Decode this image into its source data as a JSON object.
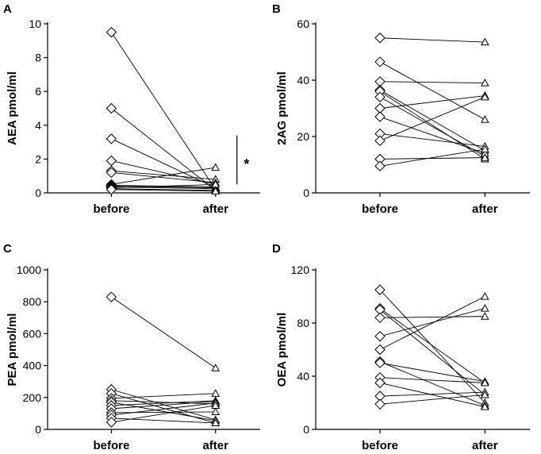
{
  "chart_data": [
    {
      "type": "scatter",
      "panel": "A",
      "ylabel": "AEA pmol/ml",
      "categories": [
        "before",
        "after"
      ],
      "ylim": [
        0,
        10
      ],
      "yticks": [
        "0",
        "2",
        "4",
        "6",
        "8",
        "10"
      ],
      "significance": "*",
      "pairs": [
        [
          9.5,
          0.2
        ],
        [
          5.0,
          0.15
        ],
        [
          3.2,
          0.3
        ],
        [
          1.9,
          0.5
        ],
        [
          1.3,
          0.8
        ],
        [
          1.2,
          0.6
        ],
        [
          0.5,
          1.5
        ],
        [
          0.45,
          0.35
        ],
        [
          0.4,
          0.3
        ],
        [
          0.35,
          0.25
        ],
        [
          0.3,
          0.5
        ],
        [
          0.25,
          0.15
        ],
        [
          0.2,
          0.1
        ]
      ]
    },
    {
      "type": "scatter",
      "panel": "B",
      "ylabel": "2AG pmol/ml",
      "categories": [
        "before",
        "after"
      ],
      "ylim": [
        0,
        60
      ],
      "yticks": [
        "0",
        "20",
        "40",
        "60"
      ],
      "pairs": [
        [
          55,
          53.5
        ],
        [
          46.5,
          26
        ],
        [
          39.5,
          39
        ],
        [
          36.5,
          15
        ],
        [
          36,
          12
        ],
        [
          34,
          13
        ],
        [
          30,
          34.5
        ],
        [
          27,
          14
        ],
        [
          21,
          16.5
        ],
        [
          18.5,
          34
        ],
        [
          12,
          12.5
        ],
        [
          9.5,
          15.5
        ]
      ]
    },
    {
      "type": "scatter",
      "panel": "C",
      "ylabel": "PEA pmol/ml",
      "categories": [
        "before",
        "after"
      ],
      "ylim": [
        0,
        1000
      ],
      "yticks": [
        "0",
        "200",
        "400",
        "600",
        "800",
        "1000"
      ],
      "pairs": [
        [
          830,
          385
        ],
        [
          250,
          60
        ],
        [
          225,
          40
        ],
        [
          195,
          225
        ],
        [
          180,
          160
        ],
        [
          170,
          55
        ],
        [
          150,
          180
        ],
        [
          130,
          175
        ],
        [
          105,
          110
        ],
        [
          90,
          165
        ],
        [
          70,
          40
        ],
        [
          45,
          150
        ]
      ]
    },
    {
      "type": "scatter",
      "panel": "D",
      "ylabel": "OEA pmol/ml",
      "categories": [
        "before",
        "after"
      ],
      "ylim": [
        0,
        120
      ],
      "yticks": [
        "0",
        "40",
        "80",
        "120"
      ],
      "pairs": [
        [
          105,
          20
        ],
        [
          91,
          35
        ],
        [
          90,
          26
        ],
        [
          84,
          85
        ],
        [
          70,
          91
        ],
        [
          60,
          100
        ],
        [
          51,
          18
        ],
        [
          50,
          36
        ],
        [
          39,
          35
        ],
        [
          35,
          17
        ],
        [
          25,
          28
        ],
        [
          19,
          26
        ]
      ]
    }
  ]
}
